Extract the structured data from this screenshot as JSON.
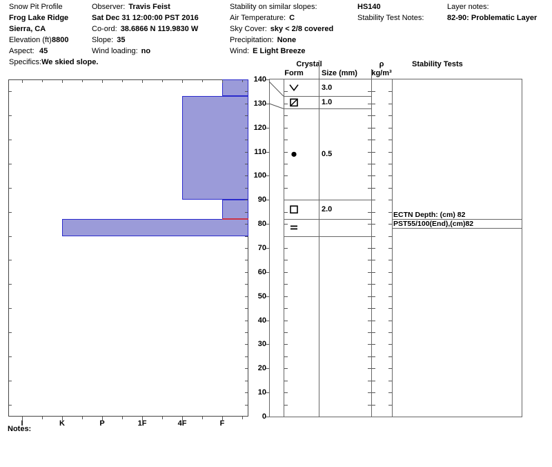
{
  "header": {
    "col1": {
      "title": "Snow Pit Profile",
      "site": "Frog Lake Ridge",
      "region": "Sierra, CA",
      "elevation_label": "Elevation (ft)",
      "elevation": "8800",
      "aspect_label": "Aspect:",
      "aspect": "45",
      "specifics_label": "Specifics:",
      "specifics": "We skied slope."
    },
    "col2": {
      "observer_label": "Observer:",
      "observer": "Travis Feist",
      "datetime": "Sat Dec 31 12:00:00 PST 2016",
      "coord_label": "Co-ord:",
      "coord": "38.6866 N 119.9830 W",
      "slope_label": "Slope:",
      "slope": "35",
      "wind_loading_label": "Wind loading:",
      "wind_loading": "no"
    },
    "col3": {
      "stability_label": "Stability on similar slopes:",
      "air_temp_label": "Air Temperature:",
      "air_temp": "C",
      "sky_label": "Sky Cover:",
      "sky": "sky < 2/8 covered",
      "precip_label": "Precipitation:",
      "precip": "None",
      "wind_label": "Wind:",
      "wind": "E Light Breeze"
    },
    "col4": {
      "hs": "HS140",
      "test_notes_label": "Stability Test Notes:"
    },
    "col5": {
      "layer_notes_label": "Layer notes:",
      "layer_note": "82-90: Problematic Layer"
    }
  },
  "table_headers": {
    "crystal": "Crystal",
    "form": "Form",
    "size": "Size (mm)",
    "rho": "ρ",
    "rho_unit": "kg/m³",
    "stability": "Stability Tests"
  },
  "notes_label": "Notes:",
  "chart_data": {
    "type": "snow-pit-hardness-profile",
    "title": "Snow Pit Profile hardness / stratigraphy chart",
    "depth_axis": {
      "unit": "cm",
      "min": 0,
      "max": 140,
      "major_tick": 10,
      "minor_tick": 5,
      "labels_side": "right-of-plot"
    },
    "hardness_axis": {
      "categories": [
        "I",
        "K",
        "P",
        "1F",
        "4F",
        "F"
      ],
      "order": "hardest (I) left to softest (F) right",
      "position": "bottom"
    },
    "total_snow_height_cm": 140,
    "pit_bottom_cm": 75,
    "bars": [
      {
        "top_cm": 140,
        "bottom_cm": 133,
        "hardness": "F"
      },
      {
        "top_cm": 133,
        "bottom_cm": 90,
        "hardness": "4F"
      },
      {
        "top_cm": 90,
        "bottom_cm": 82,
        "hardness": "F"
      },
      {
        "top_cm": 82,
        "bottom_cm": 75,
        "hardness": "K"
      }
    ],
    "layers": [
      {
        "top_cm": 140,
        "bottom_cm": 133,
        "hardness": "F",
        "grain_symbol": "surface-hoar-v",
        "size_mm": "3.0"
      },
      {
        "top_cm": 133,
        "bottom_cm": 130,
        "hardness": "4F",
        "grain_symbol": "square-slash",
        "size_mm": "1.0"
      },
      {
        "top_cm": 130,
        "bottom_cm": 90,
        "hardness": "4F",
        "grain_symbol": "filled-dot",
        "size_mm": "0.5"
      },
      {
        "top_cm": 90,
        "bottom_cm": 82,
        "hardness": "F",
        "grain_symbol": "open-square",
        "size_mm": "2.0"
      },
      {
        "top_cm": 82,
        "bottom_cm": 75,
        "hardness": "K",
        "grain_symbol": "equals",
        "size_mm": ""
      }
    ],
    "problem_layer_line": {
      "depth_cm": 82,
      "color": "#cc3344",
      "span_hardness": "F"
    },
    "stability_tests": [
      {
        "label": "ECTN  Depth: (cm) 82",
        "depth_cm": 82
      },
      {
        "label": "PST55/100(End),(cm)82",
        "depth_cm": 82
      }
    ],
    "density_values": [],
    "legend_position": "none",
    "grid": false
  },
  "colors": {
    "bar_fill": "#9b9bd9",
    "bar_border": "#2a2acc",
    "flag_red": "#cc3344",
    "line": "#555555",
    "plot_border": "#444444"
  }
}
